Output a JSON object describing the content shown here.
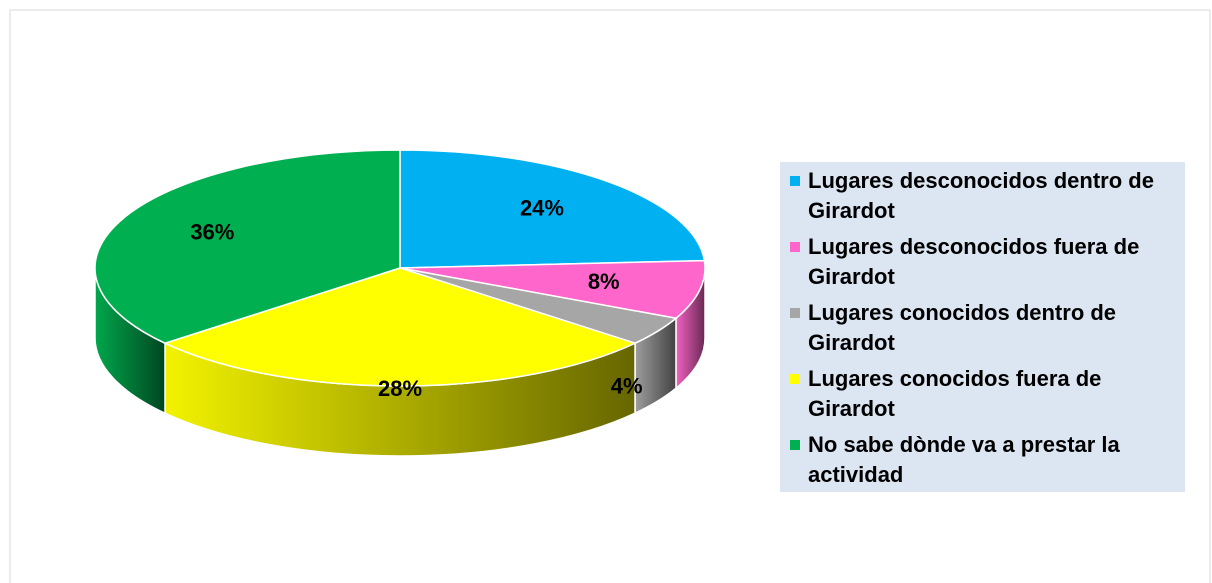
{
  "chart_data": {
    "type": "pie",
    "categories": [
      "Lugares desconocidos dentro de Girardot",
      "Lugares desconocidos fuera de Girardot",
      "Lugares conocidos dentro de Girardot",
      "Lugares conocidos fuera de Girardot",
      "No sabe dònde va a prestar la actividad"
    ],
    "values": [
      24,
      8,
      4,
      28,
      36
    ],
    "value_labels": [
      "24%",
      "8%",
      "4%",
      "28%",
      "36%"
    ],
    "colors": [
      "#00b0f0",
      "#ff66cc",
      "#a6a6a6",
      "#ffff00",
      "#00b050"
    ],
    "legend": "right"
  }
}
